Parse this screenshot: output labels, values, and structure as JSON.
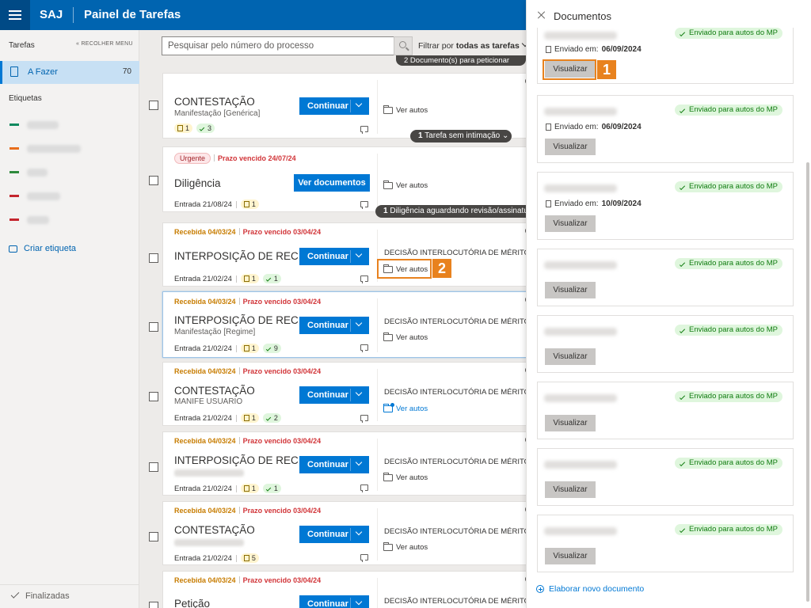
{
  "header": {
    "brand": "SAJ",
    "title": "Painel de Tarefas"
  },
  "sidebar": {
    "section": "Tarefas",
    "collapse": "RECOLHER MENU",
    "afazer": {
      "label": "A Fazer",
      "count": "70"
    },
    "etiquetas_label": "Etiquetas",
    "tag_colors": [
      "#0f8a5f",
      "#e86e1c",
      "#2e8a3c",
      "#c4262e",
      "#c4262e"
    ],
    "criar": "Criar etiqueta",
    "finalizadas": "Finalizadas"
  },
  "search": {
    "placeholder": "Pesquisar pelo número do processo"
  },
  "filter": {
    "prefix": "Filtrar por",
    "value": "todas as tarefas"
  },
  "pills": {
    "p0": "2 Documento(s) para peticionar",
    "p1_num": "1",
    "p1_text": "Tarefa sem intimação",
    "p2_num": "1",
    "p2_text": "Diligência aguardando revisão/assinatura"
  },
  "cards": [
    {
      "title": "CONTESTAÇÃO",
      "sub": "Manifestação [Genérica]",
      "b1": "1",
      "b2": "3",
      "button": "Continuar",
      "autos": "Ver autos"
    },
    {
      "urgent": "Urgente",
      "venc": "Prazo vencido 24/07/24",
      "title": "Diligência",
      "entrada": "Entrada 21/08/24",
      "b1": "1",
      "button": "Ver documentos",
      "autos": "Ver autos"
    },
    {
      "rec": "Recebida 04/03/24",
      "venc": "Prazo vencido 03/04/24",
      "title": "INTERPOSIÇÃO DE REC...",
      "entrada": "Entrada 21/02/24",
      "b1": "1",
      "b2": "1",
      "button": "Continuar",
      "decisao": "DECISÃO INTERLOCUTÓRIA DE MÉRITO",
      "autos": "Ver autos"
    },
    {
      "rec": "Recebida 04/03/24",
      "venc": "Prazo vencido 03/04/24",
      "title": "INTERPOSIÇÃO DE REC...",
      "sub": "Manifestação [Regime]",
      "entrada": "Entrada 21/02/24",
      "b1": "1",
      "b2": "9",
      "button": "Continuar",
      "decisao": "DECISÃO INTERLOCUTÓRIA DE MÉRITO",
      "autos": "Ver autos"
    },
    {
      "rec": "Recebida 04/03/24",
      "venc": "Prazo vencido 03/04/24",
      "title": "CONTESTAÇÃO",
      "sub": "MANIFE USUARIO",
      "entrada": "Entrada 21/02/24",
      "b1": "1",
      "b2": "2",
      "button": "Continuar",
      "decisao": "DECISÃO INTERLOCUTÓRIA DE MÉRITO",
      "autos": "Ver autos"
    },
    {
      "rec": "Recebida 04/03/24",
      "venc": "Prazo vencido 03/04/24",
      "title": "INTERPOSIÇÃO DE REC...",
      "entrada": "Entrada 21/02/24",
      "b1": "1",
      "b2": "1",
      "button": "Continuar",
      "decisao": "DECISÃO INTERLOCUTÓRIA DE MÉRITO",
      "autos": "Ver autos"
    },
    {
      "rec": "Recebida 04/03/24",
      "venc": "Prazo vencido 03/04/24",
      "title": "CONTESTAÇÃO",
      "entrada": "Entrada 21/02/24",
      "b1": "5",
      "button": "Continuar",
      "decisao": "DECISÃO INTERLOCUTÓRIA DE MÉRITO",
      "autos": "Ver autos"
    },
    {
      "rec": "Recebida 04/03/24",
      "venc": "Prazo vencido 03/04/24",
      "title": "Petição",
      "button": "Continuar",
      "decisao": "DECISÃO INTERLOCUTÓRIA DE MÉRITO"
    }
  ],
  "callouts": {
    "c1": "1",
    "c2": "2"
  },
  "panel": {
    "title": "Documentos",
    "docs": [
      {
        "badge": "Enviado para autos do MP",
        "env_label": "Enviado em:",
        "env_date": "06/09/2024",
        "button": "Visualizar"
      },
      {
        "badge": "Enviado para autos do MP",
        "env_label": "Enviado em:",
        "env_date": "06/09/2024",
        "button": "Visualizar"
      },
      {
        "badge": "Enviado para autos do MP",
        "env_label": "Enviado em:",
        "env_date": "10/09/2024",
        "button": "Visualizar"
      },
      {
        "badge": "Enviado para autos do MP",
        "button": "Visualizar"
      },
      {
        "badge": "Enviado para autos do MP",
        "button": "Visualizar"
      },
      {
        "badge": "Enviado para autos do MP",
        "button": "Visualizar"
      },
      {
        "badge": "Enviado para autos do MP",
        "button": "Visualizar"
      },
      {
        "badge": "Enviado para autos do MP",
        "button": "Visualizar"
      }
    ],
    "elaborar": "Elaborar novo documento"
  }
}
